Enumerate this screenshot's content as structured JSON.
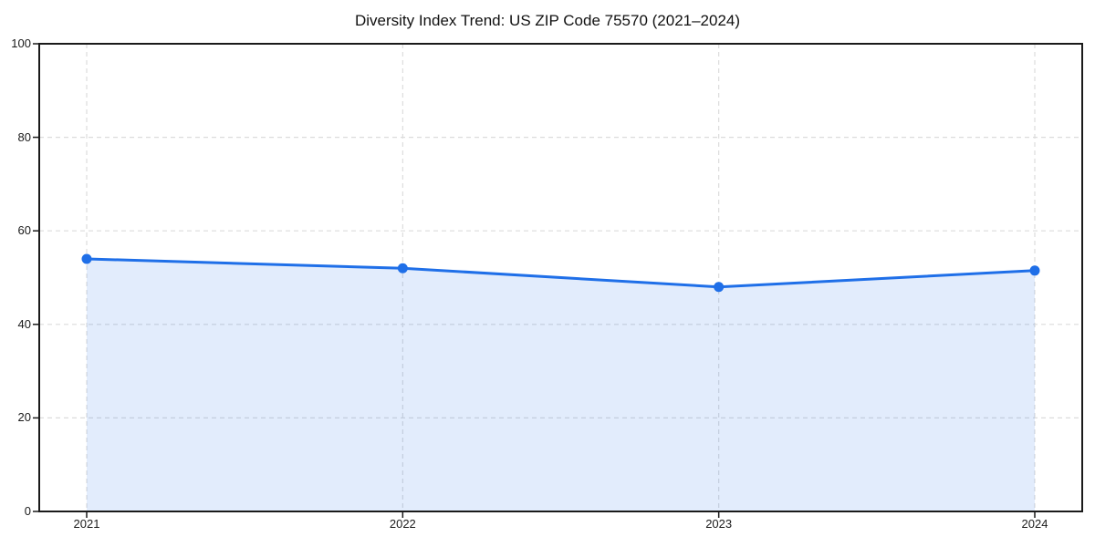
{
  "chart_data": {
    "type": "line",
    "area_fill": true,
    "title": "Diversity Index Trend: US ZIP Code 75570 (2021–2024)",
    "categories": [
      "2021",
      "2022",
      "2023",
      "2024"
    ],
    "values": [
      54,
      52,
      48,
      51.5
    ],
    "xlabel": "",
    "ylabel": "",
    "ylim": [
      0,
      100
    ],
    "yticks": [
      0,
      20,
      40,
      60,
      80,
      100
    ],
    "grid": true,
    "grid_style": "dashed",
    "legend_position": "none",
    "marker": "circle",
    "colors": {
      "line": "#1f6fe8",
      "marker": "#1f6fe8",
      "fill": "rgba(31,111,232,0.13)",
      "gridline": "#dcdcdc",
      "axis": "#1a1a1a",
      "tick_label": "#1a1a1a",
      "title": "#111111",
      "background": "#ffffff"
    }
  }
}
